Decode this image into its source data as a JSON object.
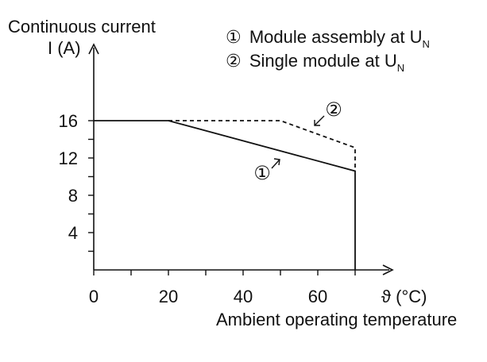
{
  "chart_data": {
    "type": "line",
    "ylabel_line1": "Continuous current",
    "ylabel_line2": "I (A)",
    "xlabel": "Ambient operating temperature",
    "x_unit_label": "ϑ (°C)",
    "xlim": [
      0,
      70
    ],
    "ylim": [
      0,
      16
    ],
    "x_ticks": [
      0,
      20,
      40,
      60
    ],
    "x_minor_ticks": [
      10,
      30,
      50,
      70
    ],
    "y_ticks": [
      4,
      8,
      12,
      16
    ],
    "y_minor_ticks": [
      2,
      6,
      10,
      14
    ],
    "legend": [
      {
        "marker": "①",
        "text": "Module assembly at U",
        "sub": "N"
      },
      {
        "marker": "②",
        "text": "Single module at U",
        "sub": "N"
      }
    ],
    "series": [
      {
        "marker": "①",
        "style": "solid",
        "x": [
          0,
          20,
          70,
          70
        ],
        "y": [
          16,
          16,
          10.6,
          0
        ]
      },
      {
        "marker": "②",
        "style": "dashed",
        "x": [
          20,
          50,
          70,
          70
        ],
        "y": [
          16,
          16,
          13.1,
          10.6
        ]
      }
    ],
    "annotations": [
      {
        "label": "①",
        "series": 0
      },
      {
        "label": "②",
        "series": 1
      }
    ],
    "grid": false
  }
}
